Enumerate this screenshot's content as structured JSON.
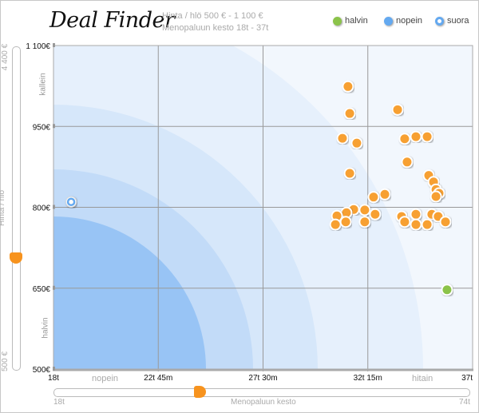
{
  "header": {
    "logo": "Deal Finder",
    "filter_price": "Hinta / hlö 500 € - 1 100 €",
    "filter_duration": "Menopaluun kesto 18t - 37t"
  },
  "legend": [
    {
      "label": "halvin",
      "color": "#8bc34a"
    },
    {
      "label": "nopein",
      "color": "#64a9f0"
    },
    {
      "label": "suora",
      "color": "#ffffff",
      "ring": "#64a9f0"
    }
  ],
  "price_slider": {
    "label": "Hinta / hlö",
    "min_label": "500 €",
    "max_label": "4 400 €",
    "top_hint": "kallein",
    "bottom_hint": "halvin",
    "min": 500,
    "max": 4400,
    "value": 1100
  },
  "duration_slider": {
    "label": "Menopaluun kesto",
    "min_label": "18t",
    "max_label": "74t",
    "min": 18,
    "max": 74,
    "value": 37
  },
  "chart_data": {
    "type": "scatter",
    "xlabel": "",
    "ylabel": "",
    "xlim": [
      18,
      37
    ],
    "ylim": [
      500,
      1100
    ],
    "x_ticks": [
      {
        "v": 18,
        "label": "18t"
      },
      {
        "v": 22.75,
        "label": "22t 45m"
      },
      {
        "v": 27.5,
        "label": "27t 30m"
      },
      {
        "v": 32.25,
        "label": "32t 15m"
      },
      {
        "v": 37,
        "label": "37t"
      }
    ],
    "y_ticks": [
      {
        "v": 500,
        "label": "500€"
      },
      {
        "v": 650,
        "label": "650€"
      },
      {
        "v": 800,
        "label": "800€"
      },
      {
        "v": 950,
        "label": "950€"
      },
      {
        "v": 1100,
        "label": "1 100€"
      }
    ],
    "x_hints": {
      "low": "nopein",
      "high": "hitain"
    },
    "y_hints": {
      "low": "halvin",
      "high": "kallein"
    },
    "grid": true,
    "legend_position": "top-right",
    "colors": {
      "default": "#f7a030",
      "cheapest": "#8bc34a",
      "direct": "#64a9f0"
    },
    "series": [
      {
        "kind": "default",
        "points": [
          [
            31.35,
            1024
          ],
          [
            31.43,
            974
          ],
          [
            33.6,
            981
          ],
          [
            31.1,
            928
          ],
          [
            31.75,
            919
          ],
          [
            33.92,
            927
          ],
          [
            34.43,
            931
          ],
          [
            34.94,
            931
          ],
          [
            31.43,
            863
          ],
          [
            34.03,
            884
          ],
          [
            35.01,
            859
          ],
          [
            35.23,
            847
          ],
          [
            35.34,
            833
          ],
          [
            35.48,
            826
          ],
          [
            35.34,
            820
          ],
          [
            33.02,
            824
          ],
          [
            32.51,
            819
          ],
          [
            31.61,
            796
          ],
          [
            32.11,
            795
          ],
          [
            32.58,
            787
          ],
          [
            31.28,
            790
          ],
          [
            30.85,
            784
          ],
          [
            30.78,
            768
          ],
          [
            31.25,
            773
          ],
          [
            32.11,
            773
          ],
          [
            33.78,
            783
          ],
          [
            34.43,
            787
          ],
          [
            35.15,
            787
          ],
          [
            35.44,
            783
          ],
          [
            33.92,
            773
          ],
          [
            34.43,
            768
          ],
          [
            34.94,
            768
          ],
          [
            35.77,
            773
          ]
        ]
      },
      {
        "kind": "cheapest",
        "points": [
          [
            35.84,
            647
          ]
        ]
      },
      {
        "kind": "direct",
        "points": [
          [
            18.8,
            810
          ]
        ]
      }
    ]
  }
}
